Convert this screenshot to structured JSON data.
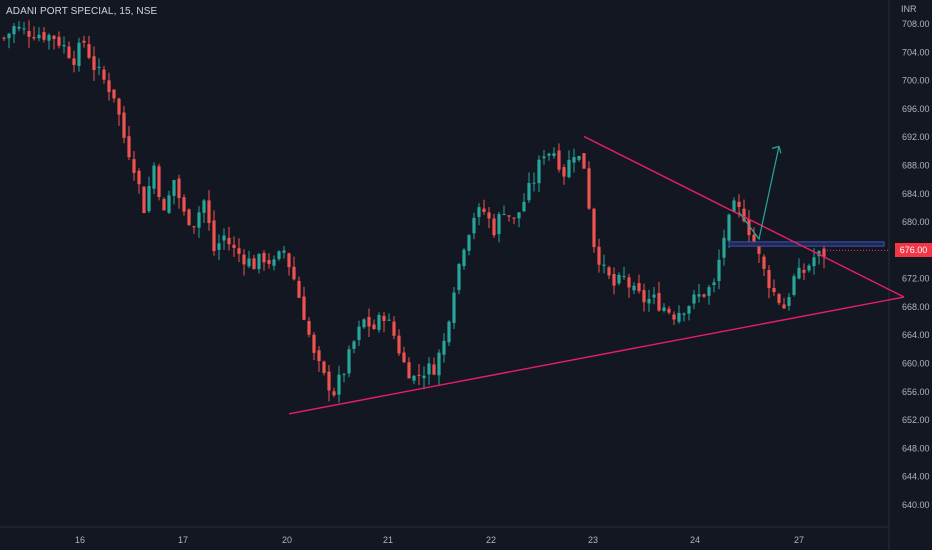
{
  "header": {
    "symbol": "ADANI PORT SPECIAL",
    "interval": "15",
    "exchange": "NSE",
    "title_text": "ADANI PORT SPECIAL, 15, NSE"
  },
  "axis": {
    "currency": "INR",
    "price_ticks": [
      "708.00",
      "704.00",
      "700.00",
      "696.00",
      "692.00",
      "688.00",
      "684.00",
      "680.00",
      "676.00",
      "672.00",
      "668.00",
      "664.00",
      "660.00",
      "656.00",
      "652.00",
      "648.00",
      "644.00",
      "640.00"
    ],
    "date_ticks": [
      "16",
      "17",
      "20",
      "21",
      "22",
      "23",
      "24",
      "27"
    ]
  },
  "last_price": {
    "label": "676.00",
    "value": 676.0
  },
  "colors": {
    "background": "#131722",
    "up": "#26a69a",
    "down": "#ef5350",
    "trendline": "#e91e63",
    "zone": "#1e2a55",
    "zone_border": "#3f51b5",
    "projection": "#26a69a",
    "price_label": "#f23645",
    "text": "#b2b5be"
  },
  "chart_data": {
    "type": "candlestick",
    "title": "ADANI PORT SPECIAL, 15, NSE",
    "ylabel": "INR",
    "ylim": [
      637.0,
      710.0
    ],
    "x_ticks": [
      "16",
      "17",
      "20",
      "21",
      "22",
      "23",
      "24",
      "27"
    ],
    "close_path": [
      [
        0,
        706
      ],
      [
        2,
        707.5
      ],
      [
        4,
        707
      ],
      [
        6,
        706.8
      ],
      [
        8,
        706.5
      ],
      [
        10,
        706.2
      ],
      [
        12,
        704.8
      ],
      [
        14,
        703.2
      ],
      [
        16,
        705.5
      ],
      [
        18,
        702
      ],
      [
        20,
        700
      ],
      [
        22,
        698
      ],
      [
        24,
        692
      ],
      [
        26,
        688
      ],
      [
        28,
        682
      ],
      [
        30,
        688
      ],
      [
        32,
        681
      ],
      [
        34,
        686
      ],
      [
        36,
        681
      ],
      [
        38,
        680
      ],
      [
        40,
        683
      ],
      [
        42,
        676
      ],
      [
        44,
        678
      ],
      [
        46,
        676
      ],
      [
        48,
        675
      ],
      [
        50,
        674
      ],
      [
        52,
        675
      ],
      [
        54,
        674
      ],
      [
        56,
        676
      ],
      [
        58,
        672
      ],
      [
        60,
        667
      ],
      [
        62,
        661
      ],
      [
        64,
        658
      ],
      [
        66,
        656
      ],
      [
        68,
        659
      ],
      [
        70,
        663
      ],
      [
        72,
        666
      ],
      [
        74,
        665
      ],
      [
        76,
        667
      ],
      [
        78,
        664
      ],
      [
        80,
        660
      ],
      [
        82,
        658
      ],
      [
        84,
        659
      ],
      [
        86,
        659.5
      ],
      [
        88,
        663
      ],
      [
        90,
        671
      ],
      [
        92,
        677
      ],
      [
        94,
        681
      ],
      [
        96,
        681.5
      ],
      [
        98,
        679
      ],
      [
        100,
        682
      ],
      [
        102,
        680
      ],
      [
        104,
        683
      ],
      [
        106,
        686
      ],
      [
        108,
        690
      ],
      [
        110,
        690
      ],
      [
        112,
        687
      ],
      [
        114,
        690
      ],
      [
        116,
        688
      ],
      [
        118,
        677
      ],
      [
        120,
        673
      ],
      [
        122,
        671
      ],
      [
        124,
        672
      ],
      [
        126,
        670
      ],
      [
        128,
        669
      ],
      [
        130,
        669
      ],
      [
        132,
        668
      ],
      [
        134,
        667
      ],
      [
        136,
        668
      ],
      [
        138,
        669
      ],
      [
        140,
        670
      ],
      [
        142,
        671
      ],
      [
        144,
        678
      ],
      [
        146,
        682
      ],
      [
        148,
        681
      ],
      [
        150,
        677
      ],
      [
        152,
        673
      ],
      [
        154,
        670
      ],
      [
        156,
        668
      ],
      [
        158,
        672
      ],
      [
        160,
        673
      ],
      [
        162,
        675
      ],
      [
        164,
        675.5
      ]
    ],
    "trendlines": [
      {
        "from": [
          116,
          692.1
        ],
        "to": [
          180,
          669.4
        ]
      },
      {
        "from": [
          57,
          652.9
        ],
        "to": [
          180,
          669.4
        ]
      }
    ],
    "zone": {
      "from_bar": 145,
      "to_bar": 176,
      "top": 677.2,
      "bottom": 676.6
    },
    "projection": [
      [
        147,
        681.4
      ],
      [
        151,
        677.6
      ],
      [
        155,
        690.7
      ]
    ],
    "day_boundaries": [
      16,
      36,
      56,
      76,
      96,
      116,
      136,
      156
    ]
  }
}
